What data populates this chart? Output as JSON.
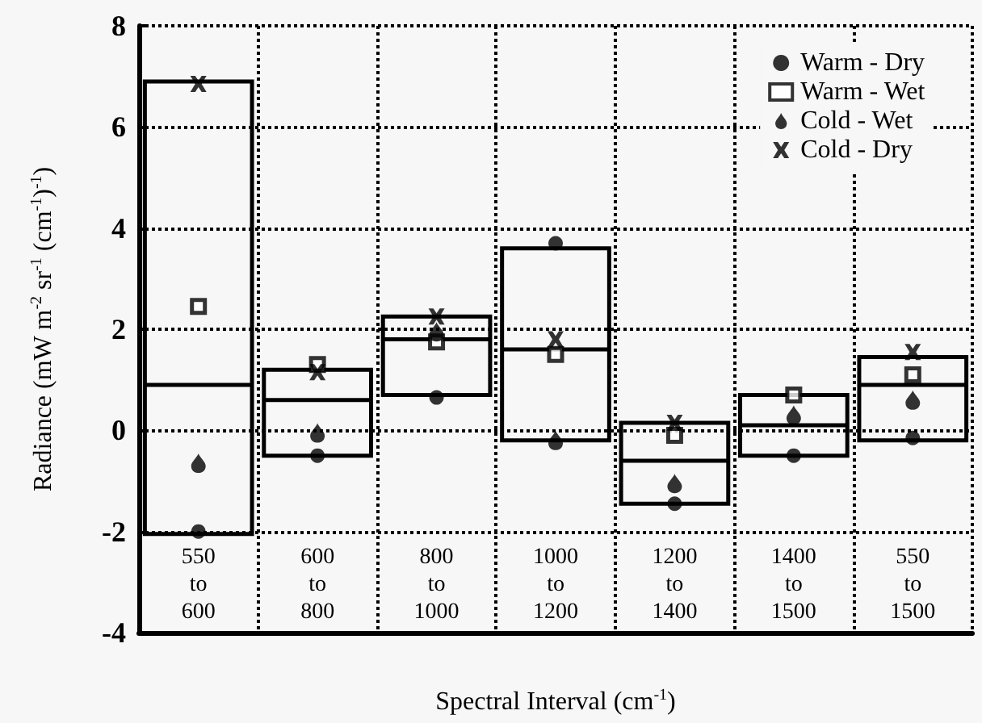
{
  "chart_data": {
    "type": "box",
    "xlabel": "Spectral Interval (cm$^{-1}$)",
    "ylabel": "Radiance (mW m$^{-2}$ sr$^{-1}$ (cm$^{-1}$)$^{-1}$)",
    "categories": [
      "550 to 600",
      "600 to 800",
      "800 to 1000",
      "1000 to 1200",
      "1200 to 1400",
      "1400 to 1500",
      "550 to 1500"
    ],
    "boxes": [
      {
        "low": -2.05,
        "q1": -2.05,
        "median": 0.9,
        "q3": 6.9,
        "high": 6.9
      },
      {
        "low": -0.5,
        "q1": -0.5,
        "median": 0.6,
        "q3": 1.2,
        "high": 1.2
      },
      {
        "low": 0.7,
        "q1": 0.7,
        "median": 1.8,
        "q3": 2.25,
        "high": 2.25
      },
      {
        "low": -0.2,
        "q1": -0.2,
        "median": 1.6,
        "q3": 3.6,
        "high": 3.6
      },
      {
        "low": -1.45,
        "q1": -1.45,
        "median": -0.6,
        "q3": 0.15,
        "high": 0.15
      },
      {
        "low": -0.5,
        "q1": -0.5,
        "median": 0.1,
        "q3": 0.7,
        "high": 0.7
      },
      {
        "low": -0.2,
        "q1": -0.2,
        "median": 0.9,
        "q3": 1.45,
        "high": 1.45
      }
    ],
    "series": [
      {
        "name": "Warm - Dry",
        "type": "scatter",
        "marker": "circle",
        "color": "#000000",
        "x": [
          "550 to 600",
          "600 to 800",
          "800 to 1000",
          "1000 to 1200",
          "1200 to 1400",
          "1400 to 1500",
          "550 to 1500"
        ],
        "values": [
          -2.0,
          -0.5,
          0.65,
          3.7,
          -1.45,
          -0.5,
          -0.15
        ]
      },
      {
        "name": "Warm - Wet",
        "type": "scatter",
        "marker": "square",
        "color": "#000000",
        "x": [
          "550 to 600",
          "600 to 800",
          "800 to 1000",
          "1000 to 1200",
          "1200 to 1400",
          "1400 to 1500",
          "550 to 1500"
        ],
        "values": [
          2.45,
          1.3,
          1.75,
          1.5,
          -0.1,
          0.7,
          1.1
        ]
      },
      {
        "name": "Cold - Wet",
        "type": "scatter",
        "color": "#000000",
        "x": [
          "550 to 600",
          "600 to 800",
          "800 to 1000",
          "1000 to 1200",
          "1200 to 1400",
          "1400 to 1500",
          "550 to 1500"
        ],
        "values": [
          -0.65,
          -0.05,
          1.95,
          -0.2,
          -1.05,
          0.3,
          0.6
        ]
      },
      {
        "name": "Cold - Dry",
        "type": "scatter",
        "marker": "cross",
        "color": "#000000",
        "x": [
          "550 to 600",
          "600 to 800",
          "800 to 1000",
          "1000 to 1200",
          "1200 to 1400",
          "1400 to 1500",
          "550 to 1500"
        ],
        "values": [
          6.85,
          1.15,
          2.25,
          1.8,
          0.15,
          null,
          1.55
        ]
      }
    ],
    "ylim": [
      -4,
      8
    ],
    "yticks": [
      -4,
      -2,
      0,
      2,
      4,
      6,
      8
    ],
    "grid": true,
    "legend": "top right"
  }
}
